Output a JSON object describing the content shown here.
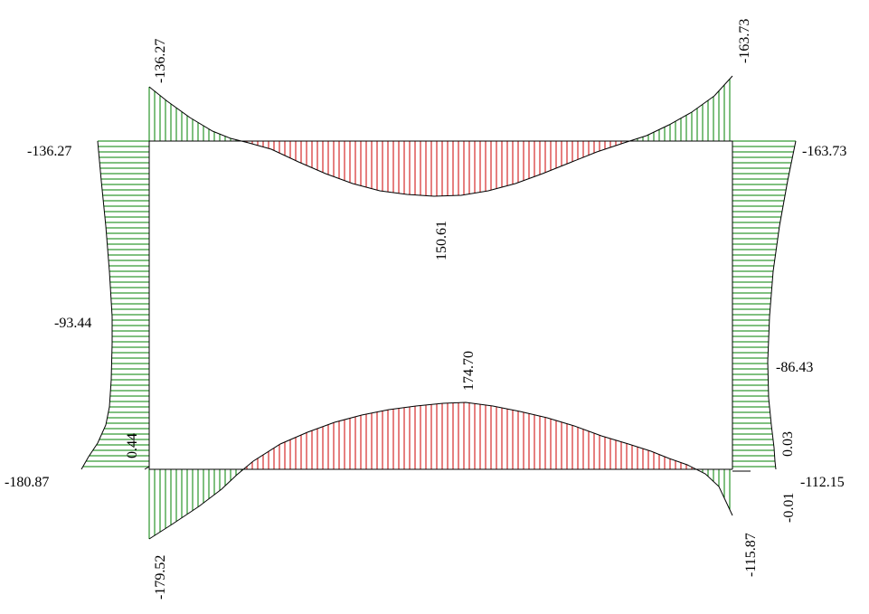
{
  "diagram": {
    "type": "bending-moment-diagram",
    "colors": {
      "frame": "#000000",
      "negative": "#008000",
      "positive": "#cc0000",
      "text": "#000000"
    },
    "labels": {
      "top_left_up": "-136.27",
      "top_right_up": "-163.73",
      "left_top": "-136.27",
      "right_top": "-163.73",
      "top_mid": "150.61",
      "left_mid": "-93.44",
      "right_mid": "-86.43",
      "bottom_mid": "174.70",
      "left_bottom_small": "0.44",
      "right_bottom_small": "0.03",
      "left_bottom": "-180.87",
      "right_bottom": "-112.15",
      "right_bottom_tiny": "-0.01",
      "bottom_left_down": "-179.52",
      "bottom_right_down": "-115.87"
    }
  }
}
